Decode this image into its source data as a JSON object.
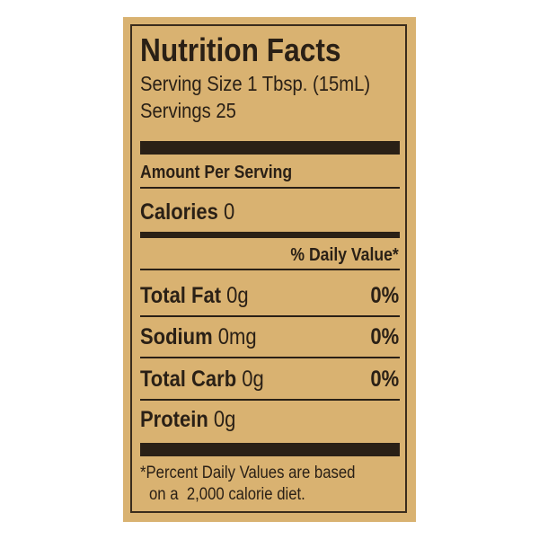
{
  "title": "Nutrition Facts",
  "serving_size": "Serving Size 1 Tbsp. (15mL)",
  "servings": "Servings 25",
  "amount_per_serving": "Amount Per Serving",
  "calories": {
    "label": "Calories",
    "value": "0"
  },
  "daily_value_header": "% Daily Value*",
  "nutrients": [
    {
      "label": "Total Fat",
      "amount": "0g",
      "dv": "0%"
    },
    {
      "label": "Sodium",
      "amount": "0mg",
      "dv": "0%"
    },
    {
      "label": "Total Carb",
      "amount": "0g",
      "dv": "0%"
    },
    {
      "label": "Protein",
      "amount": "0g"
    }
  ],
  "footnote": [
    "*Percent Daily Values are based",
    "on a  2,000 calorie diet."
  ],
  "colors": {
    "background": "#d9b271",
    "ink": "#2a2016"
  }
}
